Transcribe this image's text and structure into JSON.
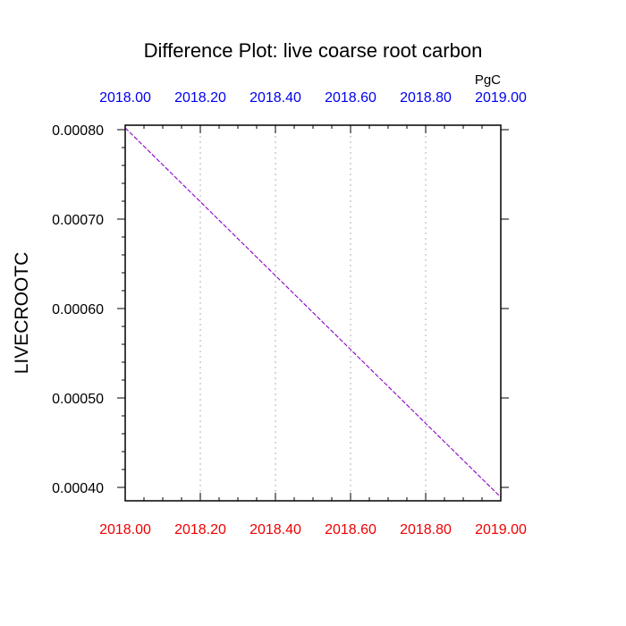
{
  "chart_data": {
    "type": "line",
    "title": "Difference Plot: live coarse root carbon",
    "units_label": "PgC",
    "ylabel": "LIVECROOTC",
    "xlabel": "",
    "xlim": [
      2018.0,
      2019.0
    ],
    "ylim": [
      0.000385,
      0.000805
    ],
    "x_ticks": [
      2018.0,
      2018.2,
      2018.4,
      2018.6,
      2018.8,
      2019.0
    ],
    "x_tick_labels": [
      "2018.00",
      "2018.20",
      "2018.40",
      "2018.60",
      "2018.80",
      "2019.00"
    ],
    "y_ticks": [
      0.0004,
      0.0005,
      0.0006,
      0.0007,
      0.0008
    ],
    "y_tick_labels": [
      "0.00040",
      "0.00050",
      "0.00060",
      "0.00070",
      "0.00080"
    ],
    "grid": "vertical dotted",
    "series": [
      {
        "x": [
          2018.0,
          2019.0
        ],
        "y": [
          0.000802,
          0.000389
        ],
        "color": "#8b00c8",
        "style": "dashed"
      }
    ],
    "colors": {
      "top_axis": "#0000ee",
      "bottom_axis": "#ee0000",
      "axis": "#000000",
      "grid": "#bdbdbd"
    }
  }
}
